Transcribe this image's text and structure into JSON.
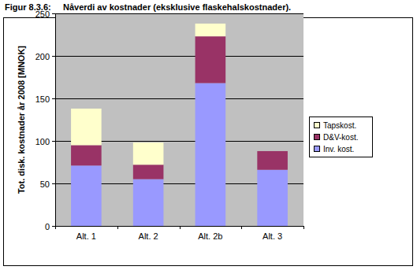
{
  "chart_data": {
    "type": "bar",
    "stacked": true,
    "title": "Figur 8.3.6:     Nåverdi av kostnader (eksklusive flaskehalskostnader).",
    "y_label": "Tot. disk. kostnader år 2008 [MNOK]",
    "categories": [
      "Alt. 1",
      "Alt. 2",
      "Alt. 2b",
      "Alt. 3"
    ],
    "series": [
      {
        "name": "Inv. kost.",
        "color": "#9999ff",
        "values": [
          71,
          55,
          168,
          66
        ]
      },
      {
        "name": "D&V-kost.",
        "color": "#993366",
        "values": [
          24,
          17,
          55,
          22
        ]
      },
      {
        "name": "Tapskost.",
        "color": "#ffffcc",
        "values": [
          43,
          26,
          15,
          0
        ]
      }
    ],
    "ylim": [
      0,
      250
    ],
    "yticks": [
      0,
      50,
      100,
      150,
      200,
      250
    ],
    "grid": true,
    "legend": "right"
  }
}
